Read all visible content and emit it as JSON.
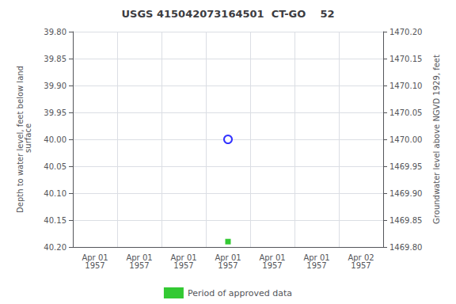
{
  "chart_data": {
    "type": "scatter",
    "title": "USGS 415042073164501  CT-GO    52",
    "ylabel": "Depth to water level, feet below land\n surface",
    "y2label": "Groundwater level above NGVD 1929, feet",
    "categories": [
      "Apr 01\n1957",
      "Apr 01\n1957",
      "Apr 01\n1957",
      "Apr 01\n1957",
      "Apr 01\n1957",
      "Apr 01\n1957",
      "Apr 02\n1957"
    ],
    "series": [
      {
        "color": "blue",
        "marker": "open_circle",
        "values": [
          null,
          null,
          null,
          40.0,
          null,
          null,
          null
        ]
      },
      {
        "name": "Period of approved data",
        "color": "#00bb00",
        "marker": "square",
        "values": [
          null,
          null,
          null,
          40.19,
          null,
          null,
          null
        ]
      }
    ],
    "ylim": [
      40.2,
      39.8
    ],
    "yticks": [
      {
        "value": 39.8,
        "label": "39.80"
      },
      {
        "value": 39.85,
        "label": "39.85"
      },
      {
        "value": 39.9,
        "label": "39.90"
      },
      {
        "value": 39.95,
        "label": "39.95"
      },
      {
        "value": 40.0,
        "label": "40.00"
      },
      {
        "value": 40.05,
        "label": "40.05"
      },
      {
        "value": 40.1,
        "label": "40.10"
      },
      {
        "value": 40.15,
        "label": "40.15"
      },
      {
        "value": 40.2,
        "label": "40.20"
      }
    ],
    "y2lim": [
      1469.8,
      1470.2
    ],
    "y2ticks": [
      {
        "value": 1469.8,
        "label": "1469.80"
      },
      {
        "value": 1469.85,
        "label": "1469.85"
      },
      {
        "value": 1469.9,
        "label": "1469.90"
      },
      {
        "value": 1469.95,
        "label": "1469.95"
      },
      {
        "value": 1470.0,
        "label": "1470.00"
      },
      {
        "value": 1470.05,
        "label": "1470.05"
      },
      {
        "value": 1470.1,
        "label": "1470.10"
      },
      {
        "value": 1470.15,
        "label": "1470.15"
      },
      {
        "value": 1470.2,
        "label": "1470.20"
      }
    ],
    "grid": true,
    "legend": "bottom"
  }
}
